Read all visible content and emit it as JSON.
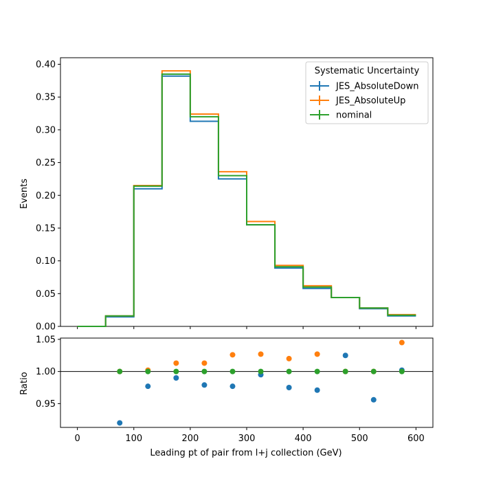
{
  "chart_data": [
    {
      "type": "line",
      "style": "step-histogram",
      "ylabel": "Events",
      "xlim": [
        -30,
        630
      ],
      "ylim": [
        0,
        0.41
      ],
      "bin_edges": [
        0,
        50,
        100,
        150,
        200,
        250,
        300,
        350,
        400,
        450,
        500,
        550,
        600
      ],
      "yticks": [
        "0.00",
        "0.05",
        "0.10",
        "0.15",
        "0.20",
        "0.25",
        "0.30",
        "0.35",
        "0.40"
      ],
      "legend": {
        "title": "Systematic Uncertainty",
        "placement": "top-right"
      },
      "series": [
        {
          "name": "JES_AbsoluteDown",
          "color": "#1f77b4",
          "values": [
            0.0,
            0.0145,
            0.21,
            0.382,
            0.313,
            0.225,
            0.155,
            0.089,
            0.058,
            0.044,
            0.027,
            0.016
          ]
        },
        {
          "name": "JES_AbsoluteUp",
          "color": "#ff7f0e",
          "values": [
            0.0,
            0.016,
            0.215,
            0.39,
            0.324,
            0.236,
            0.16,
            0.093,
            0.062,
            0.044,
            0.028,
            0.018
          ]
        },
        {
          "name": "nominal",
          "color": "#2ca02c",
          "values": [
            0.0,
            0.016,
            0.214,
            0.385,
            0.32,
            0.23,
            0.155,
            0.091,
            0.06,
            0.044,
            0.028,
            0.017
          ]
        }
      ]
    },
    {
      "type": "scatter",
      "ylabel": "Ratio",
      "xlabel": "Leading pt of pair from l+j collection (GeV)",
      "xlim": [
        -30,
        630
      ],
      "ylim": [
        0.913,
        1.052
      ],
      "reference_line": 1.0,
      "xticks": [
        "0",
        "100",
        "200",
        "300",
        "400",
        "500",
        "600"
      ],
      "yticks": [
        "0.95",
        "1.00",
        "1.05"
      ],
      "x": [
        75,
        125,
        175,
        225,
        275,
        325,
        375,
        425,
        475,
        525,
        575
      ],
      "series": [
        {
          "name": "JES_AbsoluteDown",
          "color": "#1f77b4",
          "values": [
            0.92,
            0.977,
            0.99,
            0.979,
            0.977,
            0.995,
            0.975,
            0.971,
            1.025,
            0.956,
            1.002
          ]
        },
        {
          "name": "JES_AbsoluteUp",
          "color": "#ff7f0e",
          "values": [
            1.0,
            1.002,
            1.013,
            1.013,
            1.026,
            1.027,
            1.02,
            1.027,
            1.0,
            1.0,
            1.045
          ]
        },
        {
          "name": "nominal",
          "color": "#2ca02c",
          "values": [
            1.0,
            1.0,
            1.0,
            1.0,
            1.0,
            1.0,
            1.0,
            1.0,
            1.0,
            1.0,
            1.0
          ]
        }
      ]
    }
  ]
}
